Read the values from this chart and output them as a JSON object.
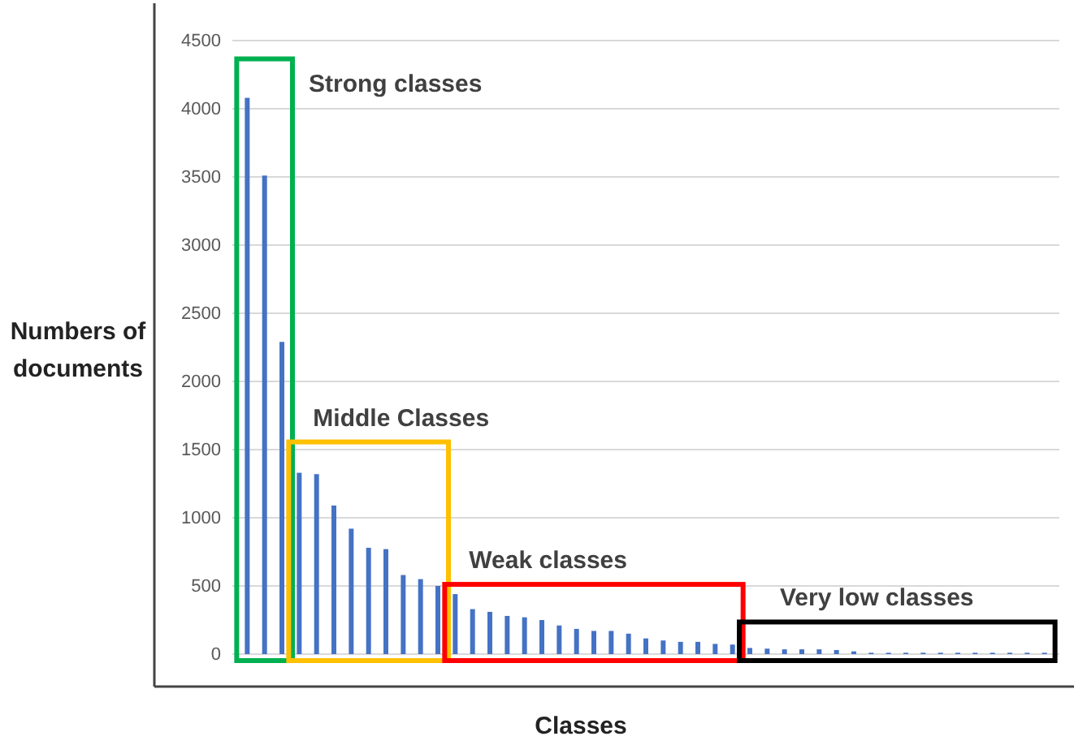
{
  "chart_data": {
    "type": "bar",
    "xlabel": "Classes",
    "ylabel": "Numbers of documents",
    "categories": [
      null,
      null,
      null,
      null,
      null,
      null,
      null,
      null,
      null,
      null,
      null,
      null,
      null,
      null,
      null,
      null,
      null,
      null,
      null,
      null,
      null,
      null,
      null,
      null,
      null,
      null,
      null,
      null,
      null,
      null,
      null,
      null,
      null,
      null,
      null,
      null,
      null,
      null,
      null,
      null,
      null,
      null,
      null,
      null,
      null,
      null,
      null
    ],
    "values": [
      4080,
      3510,
      2290,
      1330,
      1320,
      1090,
      920,
      780,
      770,
      580,
      550,
      500,
      440,
      330,
      310,
      280,
      270,
      250,
      210,
      185,
      170,
      170,
      150,
      115,
      100,
      90,
      90,
      75,
      70,
      45,
      40,
      35,
      35,
      35,
      30,
      20,
      10,
      10,
      10,
      10,
      10,
      10,
      10,
      10,
      10,
      10,
      10
    ],
    "color": "#4472c4",
    "ylim": [
      0,
      4500
    ],
    "yticks": [
      0,
      500,
      1000,
      1500,
      2000,
      2500,
      3000,
      3500,
      4000,
      4500
    ],
    "grid": "y",
    "annotations": [
      "Strong classes",
      "Middle Classes",
      "Weak classes",
      "Very low classes"
    ]
  }
}
